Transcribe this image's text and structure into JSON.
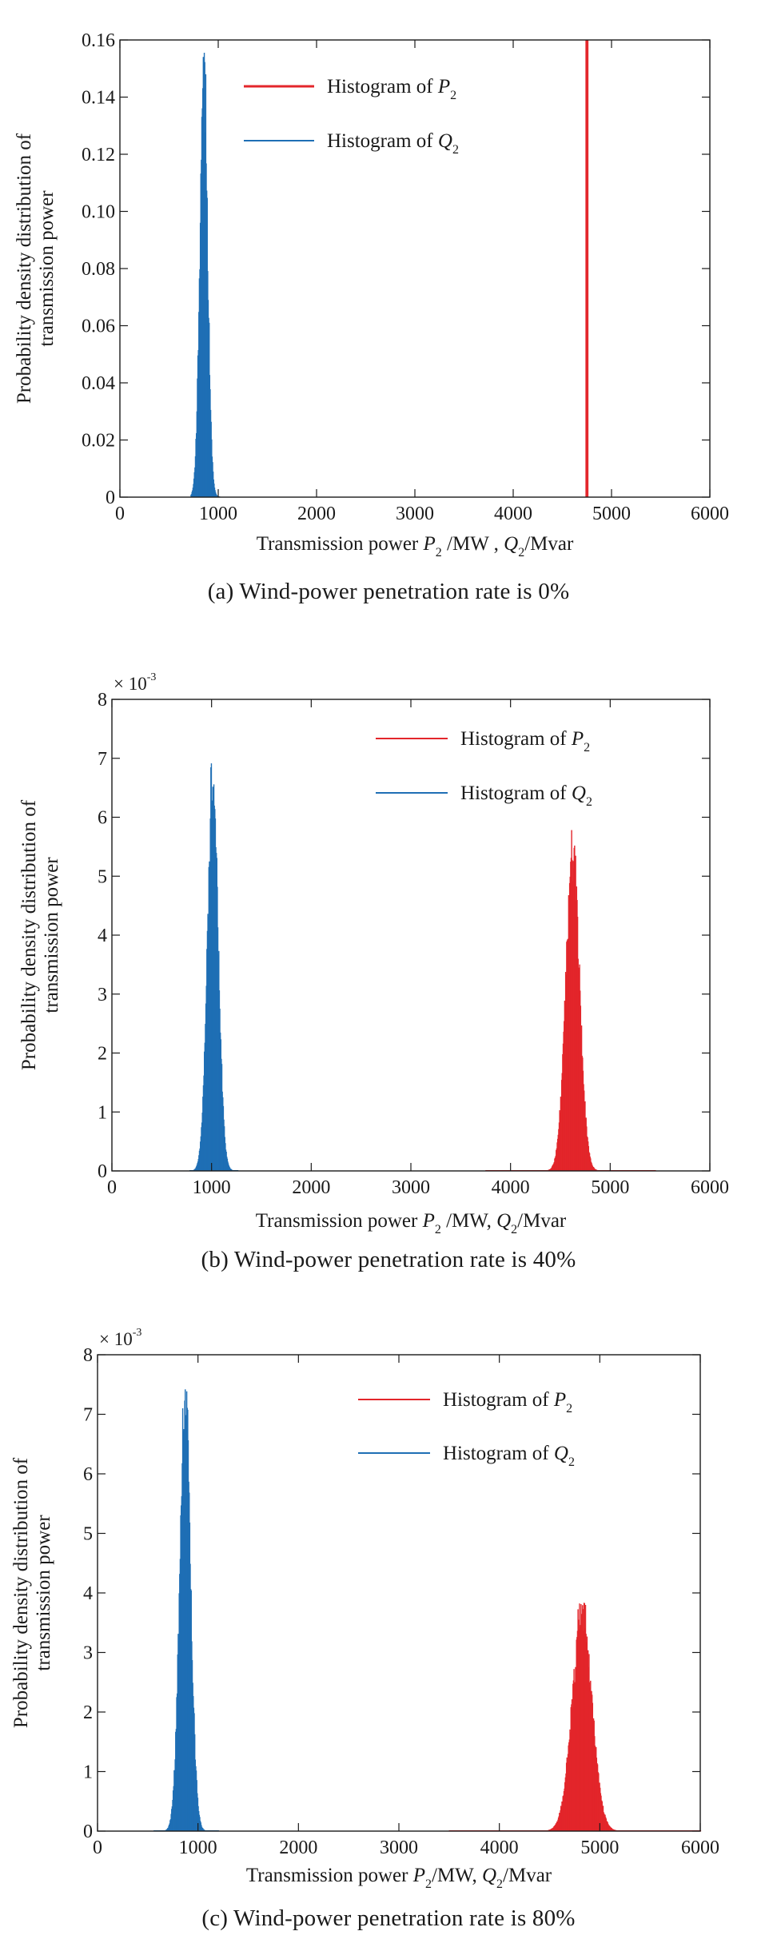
{
  "figure": {
    "panels": [
      {
        "id": "a",
        "caption": "(a) Wind-power penetration rate is 0%"
      },
      {
        "id": "b",
        "caption": "(b) Wind-power penetration rate is 40%"
      },
      {
        "id": "c",
        "caption": "(c) Wind-power penetration rate is 80%"
      }
    ]
  },
  "colors": {
    "p2": "#e3262b",
    "q2": "#1f6fb5",
    "axis": "#1a1a1a"
  },
  "chart_data": [
    {
      "type": "histogram",
      "panel": "a",
      "title": "",
      "ylabel": [
        "Probability density distribution of",
        "transmission power"
      ],
      "xlabel_parts": {
        "prefix": "Transmission power",
        "p": "P",
        "p_sub": "2",
        "p_unit": " /MW ,",
        "q": "Q",
        "q_sub": "2",
        "q_unit": "/Mvar"
      },
      "xlim": [
        0,
        6000
      ],
      "ylim": [
        0,
        0.16
      ],
      "y_exponent": "",
      "xticks": [
        0,
        1000,
        2000,
        3000,
        4000,
        5000,
        6000
      ],
      "yticks": [
        0,
        0.02,
        0.04,
        0.06,
        0.08,
        0.1,
        0.12,
        0.14,
        0.16
      ],
      "ytick_labels": [
        "0",
        "0.02",
        "0.04",
        "0.06",
        "0.08",
        "0.10",
        "0.12",
        "0.14",
        "0.16"
      ],
      "legend": {
        "position": "top-left-center",
        "entries": [
          {
            "series": "P2",
            "text": "Histogram of",
            "sym": "P",
            "sub": "2"
          },
          {
            "series": "Q2",
            "text": "Histogram of",
            "sym": "Q",
            "sub": "2"
          }
        ]
      },
      "series": [
        {
          "name": "P2",
          "color_key": "p2",
          "distribution": "spike",
          "x": 4750,
          "peak": 0.16
        },
        {
          "name": "Q2",
          "color_key": "q2",
          "distribution": "normal",
          "mean": 850,
          "sd": 40,
          "peak": 0.157,
          "min": 720,
          "max": 1010
        }
      ]
    },
    {
      "type": "histogram",
      "panel": "b",
      "title": "",
      "ylabel": [
        "Probability density distribution of",
        "transmission power"
      ],
      "xlabel_parts": {
        "prefix": "Transmission power",
        "p": "P",
        "p_sub": "2",
        "p_unit": " /MW,",
        "q": "Q",
        "q_sub": "2",
        "q_unit": "/Mvar"
      },
      "xlim": [
        0,
        6000
      ],
      "ylim": [
        0,
        8
      ],
      "y_exponent": "× 10",
      "y_exponent_power": "-3",
      "xticks": [
        0,
        1000,
        2000,
        3000,
        4000,
        5000,
        6000
      ],
      "yticks": [
        0,
        1,
        2,
        3,
        4,
        5,
        6,
        7,
        8
      ],
      "ytick_labels": [
        "0",
        "1",
        "2",
        "3",
        "4",
        "5",
        "6",
        "7",
        "8"
      ],
      "legend": {
        "position": "top-right",
        "entries": [
          {
            "series": "P2",
            "text": "Histogram of",
            "sym": "P",
            "sub": "2"
          },
          {
            "series": "Q2",
            "text": "Histogram of",
            "sym": "Q",
            "sub": "2"
          }
        ]
      },
      "series": [
        {
          "name": "Q2",
          "color_key": "q2",
          "distribution": "normal",
          "mean": 1010,
          "sd": 55,
          "peak": 6.95,
          "min": 780,
          "max": 1260
        },
        {
          "name": "P2",
          "color_key": "p2",
          "distribution": "normal",
          "mean": 4620,
          "sd": 70,
          "peak": 5.8,
          "min": 3750,
          "max": 5450
        }
      ]
    },
    {
      "type": "histogram",
      "panel": "c",
      "title": "",
      "ylabel": [
        "Probability density distribution of",
        "transmission power"
      ],
      "xlabel_parts": {
        "prefix": "Transmission power",
        "p": "P",
        "p_sub": "2",
        "p_unit": "/MW,",
        "q": "Q",
        "q_sub": "2",
        "q_unit": "/Mvar"
      },
      "xlim": [
        0,
        6000
      ],
      "ylim": [
        0,
        8
      ],
      "y_exponent": "× 10",
      "y_exponent_power": "-3",
      "xticks": [
        0,
        1000,
        2000,
        3000,
        4000,
        5000,
        6000
      ],
      "yticks": [
        0,
        1,
        2,
        3,
        4,
        5,
        6,
        7,
        8
      ],
      "ytick_labels": [
        "0",
        "1",
        "2",
        "3",
        "4",
        "5",
        "6",
        "7",
        "8"
      ],
      "legend": {
        "position": "top-right",
        "entries": [
          {
            "series": "P2",
            "text": "Histogram of",
            "sym": "P",
            "sub": "2"
          },
          {
            "series": "Q2",
            "text": "Histogram of",
            "sym": "Q",
            "sub": "2"
          }
        ]
      },
      "series": [
        {
          "name": "P2",
          "color_key": "p2",
          "distribution": "normal",
          "mean": 4820,
          "sd": 100,
          "peak": 3.85,
          "min": 3500,
          "max": 6000
        },
        {
          "name": "Q2",
          "color_key": "q2",
          "distribution": "normal",
          "mean": 870,
          "sd": 55,
          "peak": 7.6,
          "min": 560,
          "max": 1200
        }
      ]
    }
  ]
}
